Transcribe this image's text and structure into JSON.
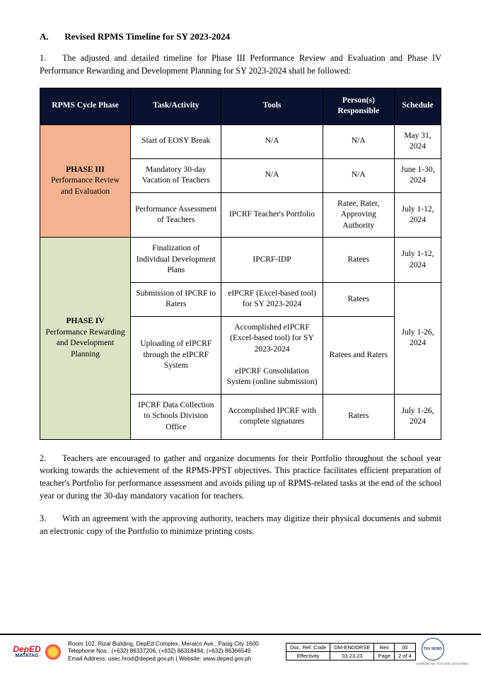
{
  "heading": {
    "letter": "A.",
    "title": "Revised RPMS Timeline for SY 2023-2024"
  },
  "para1": {
    "num": "1.",
    "text": "The adjusted and detailed timeline for Phase III Performance Review and Evaluation and Phase IV Performance Rewarding and Development Planning for SY 2023-2024 shall be followed:"
  },
  "columns": [
    "RPMS Cycle Phase",
    "Task/Activity",
    "Tools",
    "Person(s) Responsible",
    "Schedule"
  ],
  "phase3": {
    "name": "PHASE III",
    "desc": "Performance Review and Evaluation",
    "rows": [
      {
        "task": "Start of EOSY Break",
        "tools": "N/A",
        "person": "N/A",
        "sched": "May 31, 2024"
      },
      {
        "task": "Mandatory 30-day Vacation of Teachers",
        "tools": "N/A",
        "person": "N/A",
        "sched": "June 1-30, 2024"
      },
      {
        "task": "Performance Assessment of Teachers",
        "tools": "IPCRF Teacher's Portfolio",
        "person": "Ratee, Rater, Approving Authority",
        "sched": "July 1-12, 2024"
      }
    ]
  },
  "phase4": {
    "name": "PHASE IV",
    "desc": "Performance Rewarding and Development Planning",
    "rows": [
      {
        "task": "Finalization of Individual Development Plans",
        "tools": "IPCRF-IDP",
        "person": "Ratees",
        "sched": "July 1-12, 2024"
      },
      {
        "task": "Submission of IPCRF to Raters",
        "tools": "eIPCRF (Excel-based tool) for SY 2023-2024",
        "person": "Ratees"
      },
      {
        "task": "Uploading of eIPCRF through the eIPCRF System",
        "tools": "Accomplished eIPCRF (Excel-based tool) for SY 2023-2024\n\neIPCRF Consolidation System (online submission)",
        "person": "Ratees and Raters"
      },
      {
        "task": "IPCRF Data Collection to Schools Division Office",
        "tools": "Accomplished IPCRF with complete signatures",
        "person": "Raters",
        "sched": "July 1-26, 2024"
      }
    ],
    "merged_sched": "July 1-26, 2024"
  },
  "para2": {
    "num": "2.",
    "text": "Teachers are encouraged to gather and organize documents for their Portfolio throughout the school year working towards the achievement of the RPMS-PPST objectives. This practice facilitates efficient preparation of teacher's Portfolio for performance assessment and avoids piling up of RPMS-related tasks at the end of the school year or during the 30-day mandatory vacation for teachers."
  },
  "para3": {
    "num": "3.",
    "text": "With an agreement with the approving authority, teachers may digitize their physical documents and submit an electronic copy of the Portfolio to minimize printing costs."
  },
  "footer": {
    "deped": "DepED",
    "matatag": "MATATAG",
    "addr1": "Room 102, Rizal Building, DepEd Complex, Meralco Ave., Pasig City 1600",
    "addr2": "Telephone Nos.: (+632) 86337206, (+632) 86318494, (+632) 86366549",
    "addr3": "Email Address: usec.hrod@deped.gov.ph | Website: www.deped.gov.ph",
    "doc": {
      "ref_lbl": "Doc. Ref. Code",
      "ref_val": "DM-ENDORSE",
      "rev_lbl": "Rev",
      "rev_val": "00",
      "eff_lbl": "Effectivity",
      "eff_val": "03.23.23",
      "page_lbl": "Page",
      "page_val": "2 of 4"
    },
    "tuv": "TUV NORD",
    "tuv_cap": "Certificate No. TUV-1001 22-01-0001"
  }
}
